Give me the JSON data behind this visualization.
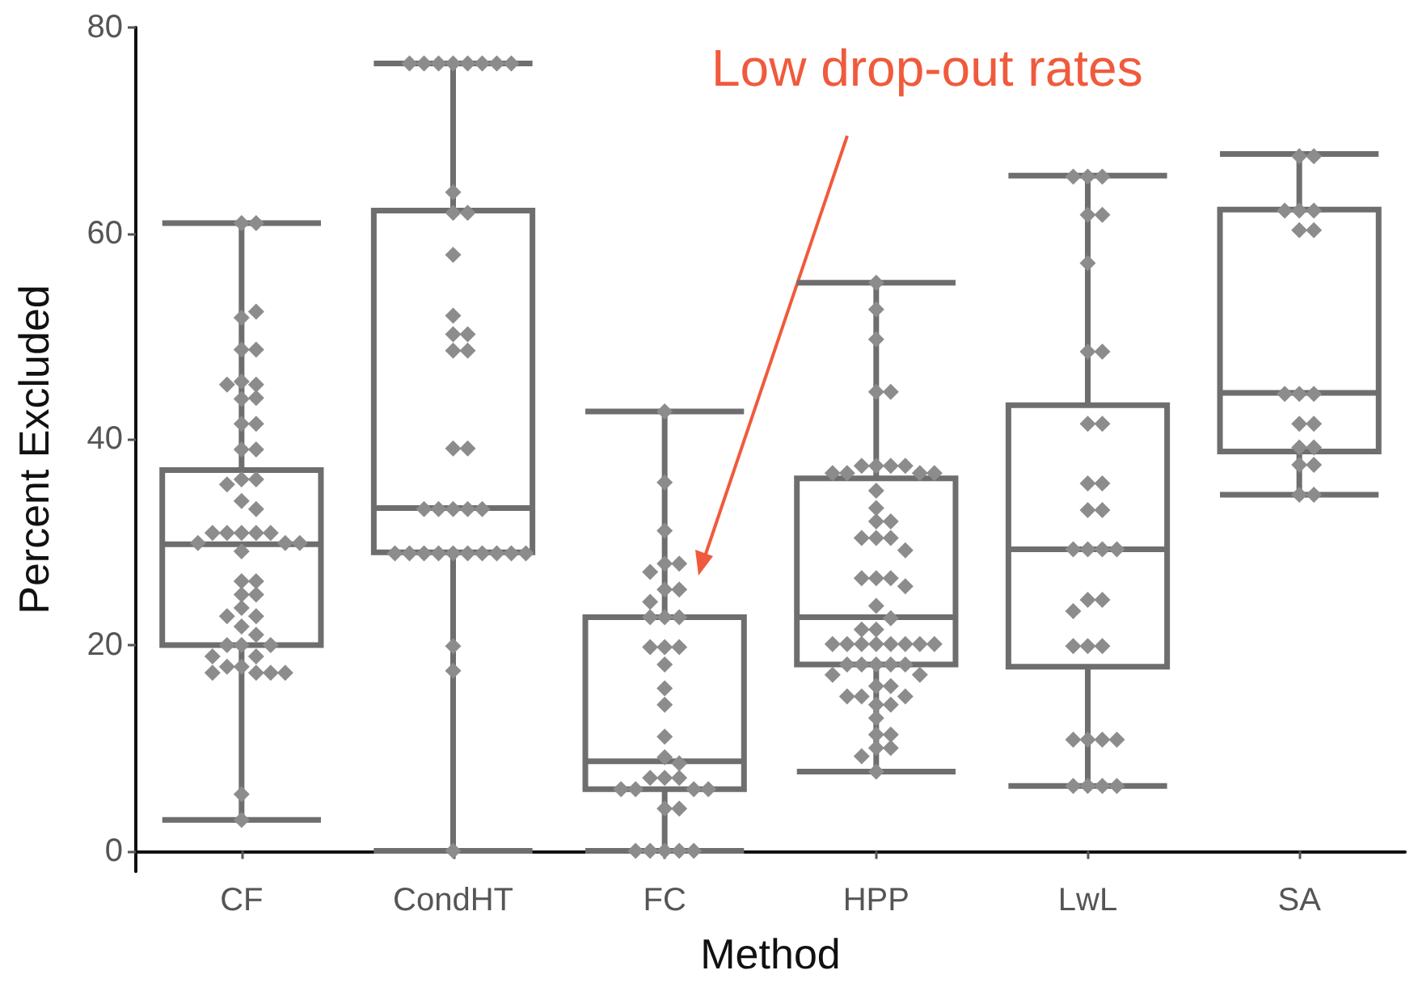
{
  "chart_data": {
    "type": "box",
    "xlabel": "Method",
    "ylabel": "Percent Excluded",
    "categories": [
      "CF",
      "CondHT",
      "FC",
      "HPP",
      "LwL",
      "SA"
    ],
    "color": "#6e6e6e",
    "ylim": [
      -2,
      80
    ],
    "yticks": [
      0,
      20,
      40,
      60,
      80
    ],
    "grid": false,
    "marker": "diamond",
    "annotations": [
      "Low drop-out rates"
    ],
    "boxes": [
      {
        "low": 3,
        "q1": 20,
        "median": 29.8,
        "q3": 37,
        "high": 61
      },
      {
        "low": 0,
        "q1": 29,
        "median": 33.3,
        "q3": 62.2,
        "high": 76.5
      },
      {
        "low": 0,
        "q1": 6,
        "median": 8.7,
        "q3": 22.7,
        "high": 42.7
      },
      {
        "low": 7.7,
        "q1": 18.1,
        "median": 22.7,
        "q3": 36.2,
        "high": 55.2
      },
      {
        "low": 6.3,
        "q1": 17.9,
        "median": 29.3,
        "q3": 43.3,
        "high": 65.6
      },
      {
        "low": 34.6,
        "q1": 38.8,
        "median": 44.5,
        "q3": 62.3,
        "high": 67.7
      }
    ],
    "series": [
      {
        "type": "scatter",
        "color": "#8c8c8c",
        "x": [
          "CF",
          "CF",
          "CF",
          "CF",
          "CF",
          "CF",
          "CF",
          "CF",
          "CF",
          "CF",
          "CF",
          "CF",
          "CF",
          "CF",
          "CF",
          "CF",
          "CF",
          "CF",
          "CF",
          "CF",
          "CF",
          "CF",
          "CF",
          "CF",
          "CF",
          "CF",
          "CF",
          "CF",
          "CF",
          "CF",
          "CF",
          "CF",
          "CF",
          "CF",
          "CF",
          "CF",
          "CF",
          "CF",
          "CF",
          "CF",
          "CF",
          "CF",
          "CF",
          "CF",
          "CF",
          "CF",
          "CF",
          "CF",
          "CF",
          "CF",
          "CF"
        ],
        "values": [
          61,
          61,
          51.8,
          52.4,
          48.7,
          48.7,
          45.6,
          45.3,
          45.3,
          43.9,
          44,
          41.5,
          41.5,
          39,
          39,
          36.1,
          36.1,
          35.6,
          34,
          33.2,
          30.9,
          30.9,
          30.9,
          30.9,
          30.9,
          29.9,
          29.9,
          29.9,
          29.1,
          26.2,
          26.2,
          24.9,
          24.9,
          23.6,
          22.8,
          22.8,
          21.8,
          21,
          20,
          20,
          20,
          18.9,
          18.9,
          17.9,
          17.9,
          17.3,
          17.3,
          17.3,
          17.3,
          5.5,
          3
        ]
      },
      {
        "type": "scatter",
        "color": "#8c8c8c",
        "x": [
          "CondHT",
          "CondHT",
          "CondHT",
          "CondHT",
          "CondHT",
          "CondHT",
          "CondHT",
          "CondHT",
          "CondHT",
          "CondHT",
          "CondHT",
          "CondHT",
          "CondHT",
          "CondHT",
          "CondHT",
          "CondHT",
          "CondHT",
          "CondHT",
          "CondHT",
          "CondHT",
          "CondHT",
          "CondHT",
          "CondHT",
          "CondHT",
          "CondHT",
          "CondHT",
          "CondHT",
          "CondHT",
          "CondHT",
          "CondHT",
          "CondHT",
          "CondHT",
          "CondHT",
          "CondHT",
          "CondHT",
          "CondHT",
          "CondHT"
        ],
        "values": [
          76.5,
          76.5,
          76.5,
          76.5,
          76.5,
          76.5,
          76.5,
          76.5,
          64,
          62,
          62,
          57.9,
          52,
          50.2,
          50.2,
          48.6,
          48.6,
          39.1,
          39.1,
          33.2,
          33.2,
          33.2,
          33.2,
          33.2,
          28.9,
          28.9,
          28.9,
          28.9,
          28.9,
          28.9,
          28.9,
          28.9,
          28.9,
          28.9,
          19.9,
          17.5,
          0
        ]
      },
      {
        "type": "scatter",
        "color": "#8c8c8c",
        "x": [
          "FC",
          "FC",
          "FC",
          "FC",
          "FC",
          "FC",
          "FC",
          "FC",
          "FC",
          "FC",
          "FC",
          "FC",
          "FC",
          "FC",
          "FC",
          "FC",
          "FC",
          "FC",
          "FC",
          "FC",
          "FC",
          "FC",
          "FC",
          "FC",
          "FC",
          "FC",
          "FC",
          "FC",
          "FC",
          "FC",
          "FC",
          "FC",
          "FC",
          "FC",
          "FC"
        ],
        "values": [
          42.7,
          35.8,
          31.1,
          27.9,
          27.9,
          27.1,
          25.4,
          25.4,
          24.2,
          22.7,
          22.7,
          22.7,
          19.8,
          19.8,
          19.8,
          18.1,
          15.8,
          14.2,
          11.1,
          9.1,
          8.5,
          7.1,
          7.1,
          7.1,
          6,
          6,
          6,
          6,
          4.1,
          4.1,
          0,
          0,
          0,
          0,
          0
        ]
      },
      {
        "type": "scatter",
        "color": "#8c8c8c",
        "x": [
          "HPP",
          "HPP",
          "HPP",
          "HPP",
          "HPP",
          "HPP",
          "HPP",
          "HPP",
          "HPP",
          "HPP",
          "HPP",
          "HPP",
          "HPP",
          "HPP",
          "HPP",
          "HPP",
          "HPP",
          "HPP",
          "HPP",
          "HPP",
          "HPP",
          "HPP",
          "HPP",
          "HPP",
          "HPP",
          "HPP",
          "HPP",
          "HPP",
          "HPP",
          "HPP",
          "HPP",
          "HPP",
          "HPP",
          "HPP",
          "HPP",
          "HPP",
          "HPP",
          "HPP",
          "HPP",
          "HPP",
          "HPP",
          "HPP",
          "HPP",
          "HPP",
          "HPP",
          "HPP",
          "HPP",
          "HPP",
          "HPP",
          "HPP",
          "HPP",
          "HPP",
          "HPP",
          "HPP",
          "HPP",
          "HPP",
          "HPP",
          "HPP"
        ],
        "values": [
          55.2,
          52.6,
          49.7,
          44.6,
          44.6,
          37.4,
          37.4,
          37.4,
          37.4,
          36.7,
          36.7,
          36.7,
          36.7,
          35,
          33.3,
          32,
          32,
          30.4,
          30.4,
          30.4,
          29.2,
          26.5,
          26.5,
          26.5,
          25.7,
          23.8,
          22.6,
          21.5,
          21.5,
          20.1,
          20.1,
          20.1,
          20.1,
          20.1,
          20.1,
          20.1,
          20.1,
          18.1,
          18.1,
          18.1,
          18.1,
          18.1,
          17.1,
          17.1,
          16,
          16,
          15,
          15,
          15,
          14.2,
          14.2,
          12.9,
          11.3,
          11.3,
          10,
          10,
          9.2,
          7.7
        ]
      },
      {
        "type": "scatter",
        "color": "#8c8c8c",
        "x": [
          "LwL",
          "LwL",
          "LwL",
          "LwL",
          "LwL",
          "LwL",
          "LwL",
          "LwL",
          "LwL",
          "LwL",
          "LwL",
          "LwL",
          "LwL",
          "LwL",
          "LwL",
          "LwL",
          "LwL",
          "LwL",
          "LwL",
          "LwL",
          "LwL",
          "LwL",
          "LwL",
          "LwL",
          "LwL",
          "LwL",
          "LwL",
          "LwL",
          "LwL",
          "LwL",
          "LwL",
          "LwL"
        ],
        "values": [
          65.5,
          65.5,
          65.5,
          61.8,
          61.8,
          57.1,
          48.5,
          48.5,
          41.5,
          41.5,
          35.7,
          35.7,
          33.1,
          33.1,
          29.3,
          29.3,
          29.3,
          29.3,
          24.4,
          24.4,
          23.3,
          19.9,
          19.9,
          19.9,
          10.8,
          10.8,
          10.8,
          10.8,
          6.3,
          6.3,
          6.3,
          6.3
        ]
      },
      {
        "type": "scatter",
        "color": "#8c8c8c",
        "x": [
          "SA",
          "SA",
          "SA",
          "SA",
          "SA",
          "SA",
          "SA",
          "SA",
          "SA",
          "SA",
          "SA",
          "SA",
          "SA",
          "SA",
          "SA",
          "SA",
          "SA",
          "SA"
        ],
        "values": [
          67.5,
          67.5,
          62.2,
          62.2,
          62.2,
          60.3,
          60.3,
          44.4,
          44.4,
          44.4,
          41.5,
          41.5,
          39.2,
          39.2,
          37.5,
          37.5,
          34.6,
          34.6
        ]
      }
    ]
  }
}
